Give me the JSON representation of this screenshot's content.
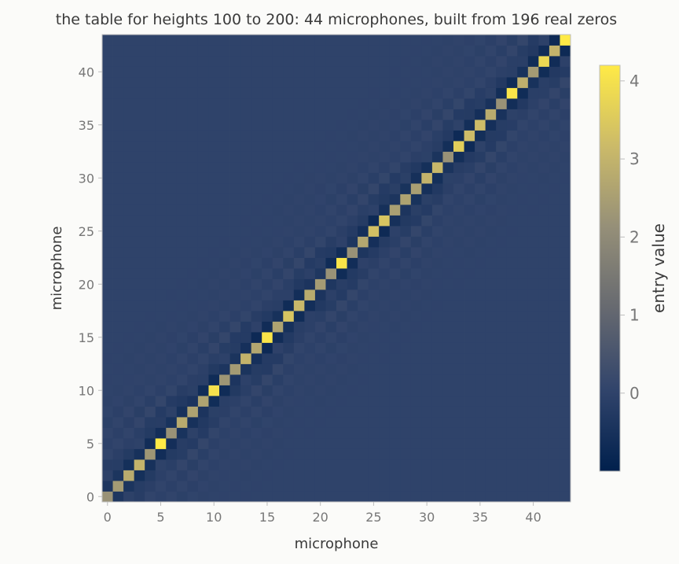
{
  "chart_data": {
    "type": "heatmap",
    "title": "the table for heights 100 to 200: 44 microphones, built from 196 real zeros",
    "xlabel": "microphone",
    "ylabel": "microphone",
    "x_ticks": [
      "0",
      "5",
      "10",
      "15",
      "20",
      "25",
      "30",
      "35",
      "40"
    ],
    "y_ticks": [
      "0",
      "5",
      "10",
      "15",
      "20",
      "25",
      "30",
      "35",
      "40"
    ],
    "xlim": [
      -0.5,
      43.5
    ],
    "ylim": [
      -0.5,
      43.5
    ],
    "n": 44,
    "colorbar": {
      "label": "entry value",
      "ticks": [
        "0",
        "1",
        "2",
        "3",
        "4"
      ],
      "range": [
        -1.0,
        4.2
      ],
      "colormap": "cividis"
    },
    "diagonal": [
      2.2,
      2.4,
      2.8,
      3.0,
      2.3,
      4.2,
      2.2,
      2.8,
      2.6,
      2.6,
      4.0,
      2.3,
      2.4,
      3.0,
      2.7,
      4.1,
      2.6,
      3.4,
      3.1,
      2.8,
      2.4,
      2.2,
      4.1,
      2.2,
      2.7,
      3.3,
      3.4,
      2.5,
      2.6,
      2.5,
      3.0,
      3.1,
      2.2,
      3.6,
      3.2,
      3.2,
      2.8,
      2.2,
      4.1,
      2.9,
      2.4,
      3.8,
      3.0,
      4.3
    ],
    "off_diagonal": {
      "first_neighbor": -0.9,
      "second_neighbor": -0.15,
      "far_amplitude": 0.25,
      "background": 0.0
    }
  }
}
